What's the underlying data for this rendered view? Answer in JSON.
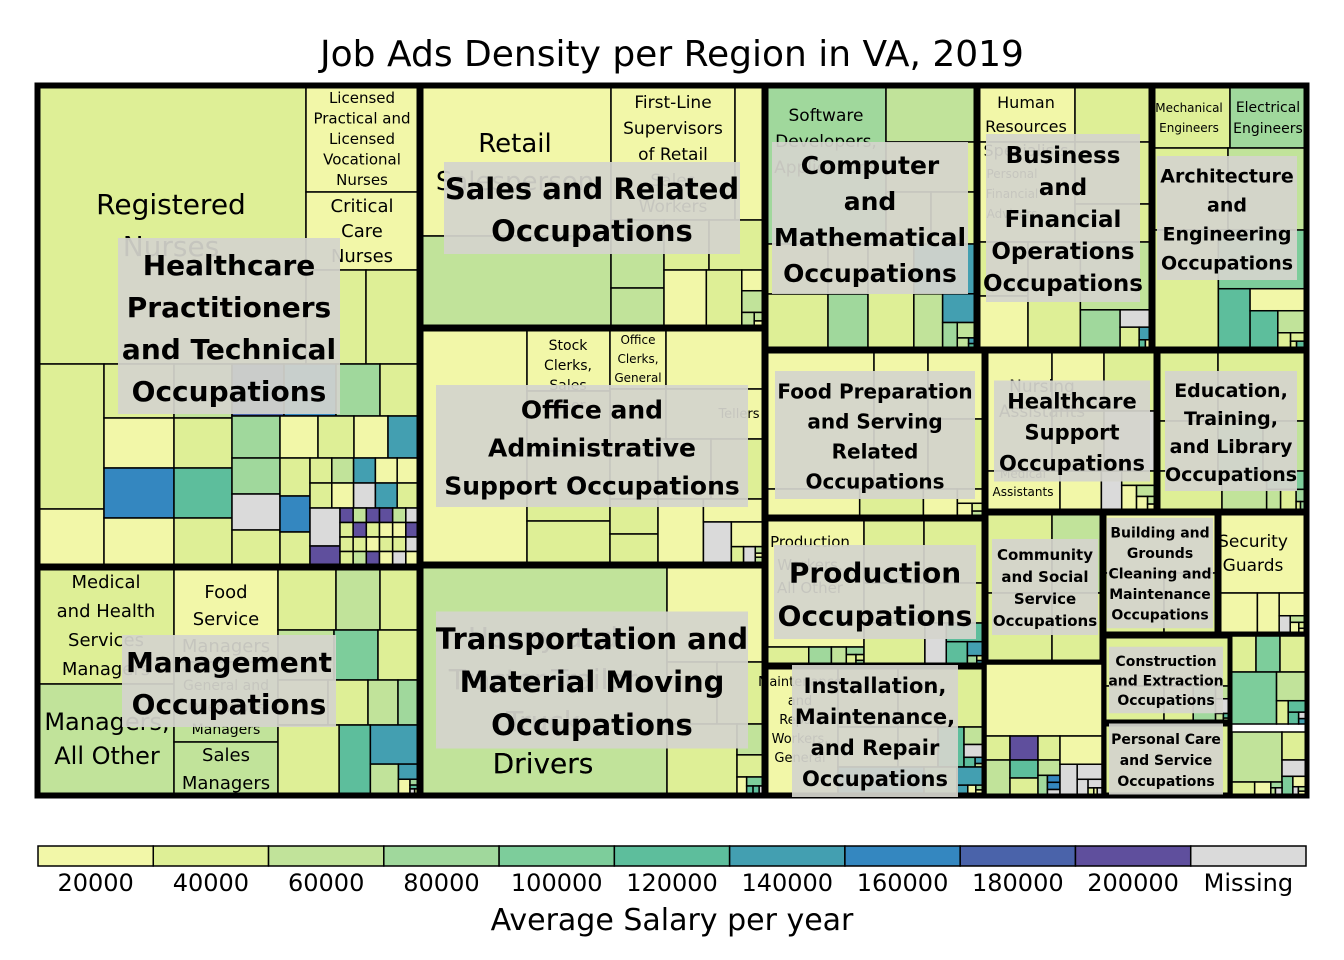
{
  "chart_data": {
    "type": "treemap",
    "title": "Job Ads Density per Region in VA, 2019",
    "colorbar": {
      "label": "Average Salary per year",
      "ticks": [
        "20000",
        "40000",
        "60000",
        "80000",
        "100000",
        "120000",
        "140000",
        "160000",
        "180000",
        "200000",
        "Missing"
      ],
      "colors": [
        "#f2f7a8",
        "#deef96",
        "#c1e39a",
        "#a0d89c",
        "#7dcd9b",
        "#5dbe9c",
        "#439fb1",
        "#3487c0",
        "#4a63aa",
        "#5f4f9d",
        "#dadada"
      ]
    },
    "groups": [
      {
        "label": "Healthcare Practitioners and Technical Occupations",
        "leaves": [
          {
            "label": "Registered Nurses",
            "salary": 60000
          },
          {
            "label": "Licensed Practical and Licensed Vocational Nurses",
            "salary": 40000
          },
          {
            "label": "Critical Care Nurses",
            "salary": 40000
          }
        ]
      },
      {
        "label": "Sales and Related Occupations",
        "leaves": [
          {
            "label": "Retail Salesperson",
            "salary": 20000
          },
          {
            "label": "First-Line Supervisors of Retail Sales Workers",
            "salary": 20000
          }
        ]
      },
      {
        "label": "Computer and Mathematical Occupations",
        "leaves": [
          {
            "label": "Software Developers, Applications",
            "salary": 60000
          }
        ]
      },
      {
        "label": "Business and Financial Operations Occupations",
        "leaves": [
          {
            "label": "Human Resources Specialists",
            "salary": 40000
          },
          {
            "label": "Personal Financial Advisors",
            "salary": 40000
          }
        ]
      },
      {
        "label": "Architecture and Engineering Occupations",
        "leaves": [
          {
            "label": "Mechanical Engineers",
            "salary": 40000
          },
          {
            "label": "Electrical Engineers",
            "salary": 60000
          }
        ]
      },
      {
        "label": "Office and Administrative Support Occupations",
        "leaves": [
          {
            "label": "Stock Clerks, Sales Floor",
            "salary": 20000
          },
          {
            "label": "Office Clerks, General",
            "salary": 20000
          },
          {
            "label": "Tellers",
            "salary": 20000
          }
        ]
      },
      {
        "label": "Food Preparation and Serving Related Occupations",
        "leaves": []
      },
      {
        "label": "Healthcare Support Occupations",
        "leaves": [
          {
            "label": "Nursing Assistants",
            "salary": 20000
          },
          {
            "label": "Medical Assistants",
            "salary": 20000
          }
        ]
      },
      {
        "label": "Education, Training, and Library Occupations",
        "leaves": []
      },
      {
        "label": "Management Occupations",
        "leaves": [
          {
            "label": "Medical and Health Services Managers",
            "salary": 40000
          },
          {
            "label": "Food Service Managers",
            "salary": 20000
          },
          {
            "label": "General and Operations Managers",
            "salary": 60000
          },
          {
            "label": "Managers, All Other",
            "salary": 60000
          },
          {
            "label": "Sales Managers",
            "salary": 60000
          }
        ]
      },
      {
        "label": "Transportation and Material Moving Occupations",
        "leaves": [
          {
            "label": "Heavy and Tractor-Trailer Truck Drivers",
            "salary": 60000
          }
        ]
      },
      {
        "label": "Production Occupations",
        "leaves": [
          {
            "label": "Production Workers, All Other",
            "salary": 20000
          }
        ]
      },
      {
        "label": "Installation, Maintenance, and Repair Occupations",
        "leaves": [
          {
            "label": "Maintenance and Repair Workers, General",
            "salary": 20000
          }
        ]
      },
      {
        "label": "Community and Social Service Occupations",
        "leaves": []
      },
      {
        "label": "Building and Grounds Cleaning and Maintenance Occupations",
        "leaves": []
      },
      {
        "label": "Security Guards",
        "leaves": []
      },
      {
        "label": "Construction and Extraction Occupations",
        "leaves": []
      },
      {
        "label": "Personal Care and Service Occupations",
        "leaves": []
      }
    ]
  }
}
